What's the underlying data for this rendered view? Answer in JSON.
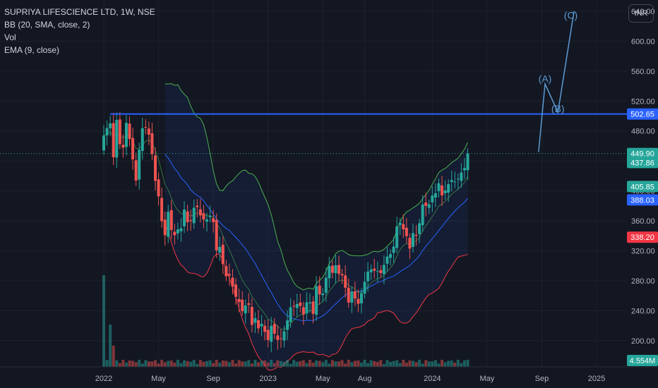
{
  "header": {
    "symbol": "SUPRIYA LIFESCIENCE LTD, 1W, NSE",
    "indicators": [
      "BB (20, SMA, close, 2)",
      "Vol",
      "EMA (9, close)"
    ],
    "currency_button": "INR"
  },
  "colors": {
    "background": "#131722",
    "up": "#26a69a",
    "down": "#ef5350",
    "ema": "#2962ff",
    "bb_upper": "#4caf50",
    "bb_lower": "#f23645",
    "bb_basis": "#2962ff",
    "resistance": "#2962ff",
    "wave": "#5b9bd5"
  },
  "chart_data": {
    "type": "candlestick",
    "title": "SUPRIYA LIFESCIENCE LTD, 1W, NSE",
    "ylim": [
      165,
      655
    ],
    "y_ticks": [
      "200.00",
      "240.00",
      "280.00",
      "320.00",
      "360.00",
      "400.00",
      "440.00",
      "480.00",
      "520.00",
      "560.00",
      "600.00",
      "640.00"
    ],
    "x_ticks": [
      "2022",
      "May",
      "Sep",
      "2023",
      "May",
      "Aug",
      "2024",
      "May",
      "Sep",
      "2025"
    ],
    "x_tick_index": [
      0,
      17,
      34,
      51,
      68,
      81,
      102,
      119,
      136,
      153
    ],
    "price_badges": [
      {
        "label": "502.65",
        "value": 502.65,
        "color": "#2962ff"
      },
      {
        "label": "449.90",
        "value": 449.9,
        "color": "#26a69a"
      },
      {
        "label": "437.86",
        "value": 437.86,
        "color": "#26a69a"
      },
      {
        "label": "405.85",
        "value": 405.85,
        "color": "#26a69a"
      },
      {
        "label": "388.03",
        "value": 388.03,
        "color": "#2962ff"
      },
      {
        "label": "338.20",
        "value": 338.2,
        "color": "#f23645"
      }
    ],
    "volume_badge": "4.554M",
    "resistance_level": 502.65,
    "last_close": 449.9,
    "waves": [
      {
        "label": "(A)",
        "index": 137,
        "value": 545
      },
      {
        "label": "(B)",
        "index": 141,
        "value": 505
      },
      {
        "label": "(C)",
        "index": 145,
        "value": 630
      }
    ],
    "wave_path": [
      [
        135,
        452
      ],
      [
        137,
        543
      ],
      [
        141,
        505
      ],
      [
        146,
        640
      ]
    ],
    "anchors": [
      [
        0,
        470
      ],
      [
        1,
        480
      ],
      [
        2,
        500
      ],
      [
        3,
        440
      ],
      [
        4,
        490
      ],
      [
        5,
        470
      ],
      [
        6,
        455
      ],
      [
        7,
        490
      ],
      [
        8,
        470
      ],
      [
        9,
        440
      ],
      [
        10,
        420
      ],
      [
        11,
        450
      ],
      [
        12,
        480
      ],
      [
        13,
        495
      ],
      [
        14,
        470
      ],
      [
        15,
        445
      ],
      [
        16,
        420
      ],
      [
        17,
        390
      ],
      [
        18,
        360
      ],
      [
        19,
        340
      ],
      [
        20,
        370
      ],
      [
        21,
        355
      ],
      [
        22,
        335
      ],
      [
        23,
        345
      ],
      [
        24,
        360
      ],
      [
        25,
        370
      ],
      [
        26,
        355
      ],
      [
        27,
        365
      ],
      [
        28,
        375
      ],
      [
        29,
        380
      ],
      [
        30,
        365
      ],
      [
        31,
        360
      ],
      [
        32,
        370
      ],
      [
        33,
        360
      ],
      [
        34,
        355
      ],
      [
        35,
        330
      ],
      [
        36,
        320
      ],
      [
        37,
        300
      ],
      [
        38,
        290
      ],
      [
        39,
        285
      ],
      [
        40,
        275
      ],
      [
        41,
        255
      ],
      [
        42,
        250
      ],
      [
        43,
        248
      ],
      [
        44,
        240
      ],
      [
        45,
        245
      ],
      [
        46,
        230
      ],
      [
        47,
        225
      ],
      [
        48,
        215
      ],
      [
        49,
        225
      ],
      [
        50,
        210
      ],
      [
        51,
        205
      ],
      [
        52,
        215
      ],
      [
        53,
        208
      ],
      [
        54,
        210
      ],
      [
        55,
        195
      ],
      [
        56,
        210
      ],
      [
        57,
        235
      ],
      [
        58,
        240
      ],
      [
        59,
        245
      ],
      [
        60,
        250
      ],
      [
        61,
        245
      ],
      [
        62,
        240
      ],
      [
        63,
        245
      ],
      [
        64,
        250
      ],
      [
        65,
        245
      ],
      [
        66,
        265
      ],
      [
        67,
        260
      ],
      [
        68,
        270
      ],
      [
        69,
        280
      ],
      [
        70,
        300
      ],
      [
        71,
        290
      ],
      [
        72,
        300
      ],
      [
        73,
        295
      ],
      [
        74,
        280
      ],
      [
        75,
        270
      ],
      [
        76,
        260
      ],
      [
        77,
        258
      ],
      [
        78,
        255
      ],
      [
        79,
        255
      ],
      [
        80,
        260
      ],
      [
        81,
        280
      ],
      [
        82,
        290
      ],
      [
        83,
        295
      ],
      [
        84,
        300
      ],
      [
        85,
        285
      ],
      [
        86,
        290
      ],
      [
        87,
        310
      ],
      [
        88,
        305
      ],
      [
        89,
        315
      ],
      [
        90,
        330
      ],
      [
        91,
        350
      ],
      [
        92,
        360
      ],
      [
        93,
        345
      ],
      [
        94,
        340
      ],
      [
        95,
        330
      ],
      [
        96,
        335
      ],
      [
        97,
        340
      ],
      [
        98,
        365
      ],
      [
        99,
        375
      ],
      [
        100,
        380
      ],
      [
        101,
        385
      ],
      [
        102,
        392
      ],
      [
        103,
        400
      ],
      [
        104,
        405
      ],
      [
        105,
        395
      ],
      [
        106,
        408
      ],
      [
        107,
        400
      ],
      [
        108,
        415
      ],
      [
        109,
        420
      ],
      [
        110,
        410
      ],
      [
        111,
        425
      ],
      [
        112,
        432
      ],
      [
        113,
        450
      ]
    ],
    "total_bars": 114
  }
}
